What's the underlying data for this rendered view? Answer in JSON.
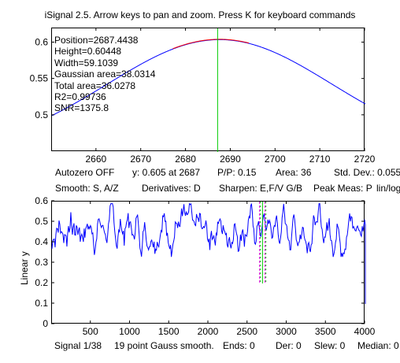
{
  "window": {
    "title": "iSignal 2.5. Arrow keys to pan and zoom. Press K for keyboard commands"
  },
  "top_panel": {
    "annotations": [
      "Position=2687.4438",
      "Height=0.60448",
      "Width=59.1039",
      "Gaussian area=38.0314",
      "Total area=36.0278",
      "R2=0.99736",
      "SNR=1375.8"
    ],
    "colors": {
      "signal": "#0000ff",
      "fit": "#ff0000",
      "cursor": "#00cc00"
    }
  },
  "status_line_1": {
    "autozero": "Autozero OFF",
    "y_at": "y: 0.605 at 2687",
    "pp": "P/P: 0.15",
    "area": "Area: 36",
    "stddev": "Std. Dev.: 0.055"
  },
  "status_line_2": {
    "smooth": "Smooth: S, A/Z",
    "derivatives": "Derivatives: D",
    "sharpen": "Sharpen: E,F/V G/B",
    "peak": "Peak Meas: P",
    "linlog": "lin/log: H"
  },
  "bottom_panel": {
    "ylabel": "Linear y",
    "colors": {
      "signal": "#0000ff",
      "cursor": "#00cc00",
      "markers": "#ff00ff"
    }
  },
  "footer": {
    "signal": "Signal 1/38",
    "smooth": "19 point Gauss smooth.",
    "ends": "Ends: 0",
    "der": "Der: 0",
    "slew": "Slew: 0",
    "median": "Median: 0"
  },
  "chart_data": [
    {
      "type": "line",
      "name": "top-zoom",
      "xlim": [
        2650,
        2720
      ],
      "ylim": [
        0.45,
        0.62
      ],
      "xticks": [
        "2660",
        "2670",
        "2680",
        "2690",
        "2700",
        "2710",
        "2720"
      ],
      "yticks": [
        "0.5",
        "0.55",
        "0.6"
      ],
      "gaussian": {
        "position": 2687.4438,
        "height": 0.60448,
        "width": 59.1039,
        "baseline": 0.449
      },
      "fit_x_range": [
        2677,
        2694
      ],
      "cursor_x": 2687
    },
    {
      "type": "line",
      "name": "bottom-full",
      "xlim": [
        0,
        4000
      ],
      "ylim": [
        0,
        0.6
      ],
      "xticks": [
        "500",
        "1000",
        "1500",
        "2000",
        "2500",
        "3000",
        "3500",
        "4000"
      ],
      "yticks": [
        "0",
        "0.1",
        "0.2",
        "0.3",
        "0.4",
        "0.5",
        "0.6"
      ],
      "ylabel": "Linear y",
      "signal_mean": 0.47,
      "signal_range": [
        0.33,
        0.59
      ],
      "cursor_x": 2687,
      "marker_x": [
        2650,
        2720
      ]
    }
  ]
}
